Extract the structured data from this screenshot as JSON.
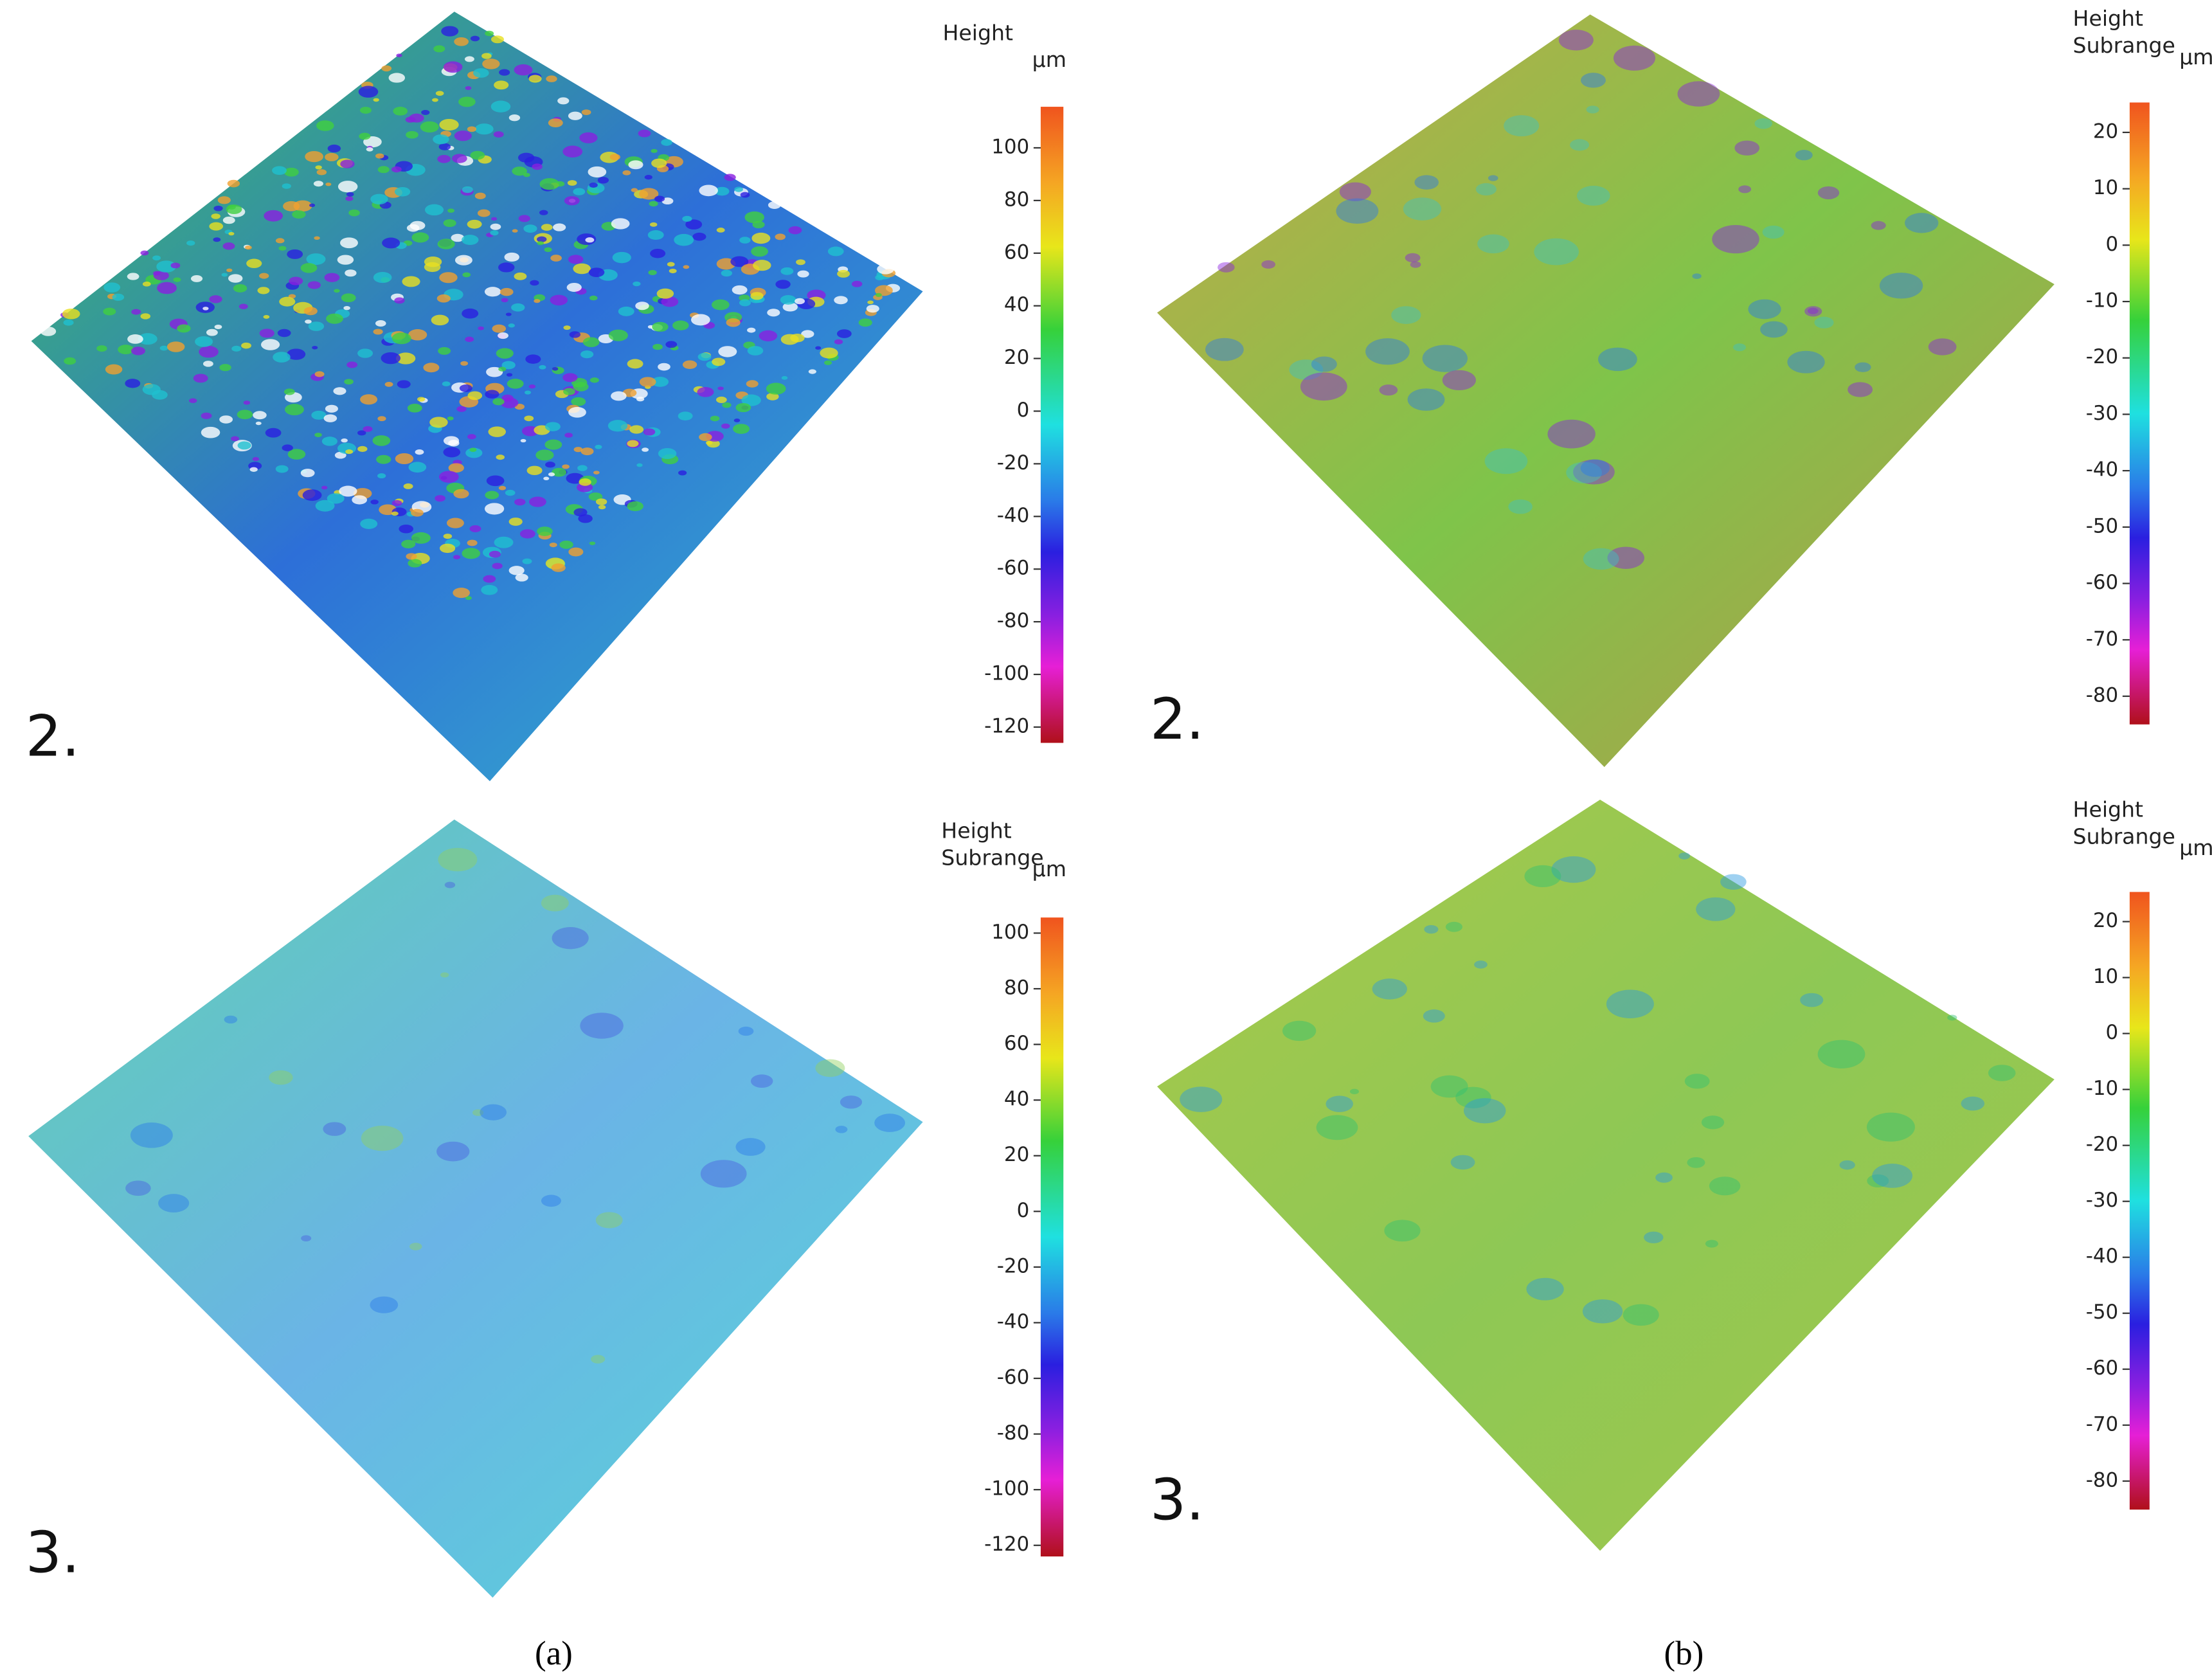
{
  "panels": [
    {
      "label": "2.",
      "colorbar": {
        "title": [
          "Height"
        ],
        "unit": "µm",
        "lim": [
          -126,
          115.6
        ],
        "ticks": [
          100,
          80,
          60,
          40,
          20,
          0,
          -20,
          -40,
          -60,
          -80,
          -100,
          -120
        ]
      }
    },
    {
      "label": "2.",
      "colorbar": {
        "title": [
          "Height",
          "Subrange"
        ],
        "unit": "µm",
        "lim": [
          -85,
          25.3
        ],
        "ticks": [
          20,
          10,
          0,
          -10,
          -20,
          -30,
          -40,
          -50,
          -60,
          -70,
          -80
        ]
      }
    },
    {
      "label": "3.",
      "colorbar": {
        "title": [
          "Height",
          "Subrange"
        ],
        "unit": "µm",
        "lim": [
          -124,
          105.6
        ],
        "ticks": [
          100,
          80,
          60,
          40,
          20,
          0,
          -20,
          -40,
          -60,
          -80,
          -100,
          -120
        ]
      }
    },
    {
      "label": "3.",
      "colorbar": {
        "title": [
          "Height",
          "Subrange"
        ],
        "unit": "µm",
        "lim": [
          -85.1,
          25.3
        ],
        "ticks": [
          20,
          10,
          0,
          -10,
          -20,
          -30,
          -40,
          -50,
          -60,
          -70,
          -80
        ]
      }
    }
  ],
  "captions": [
    "(a)",
    "(b)"
  ]
}
